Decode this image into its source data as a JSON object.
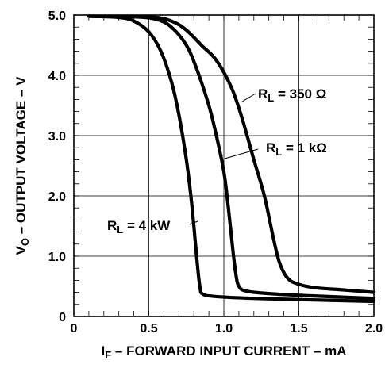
{
  "chart_data": {
    "type": "line",
    "xlabel": "I",
    "xlabel_sub": "F",
    "xlabel_rest": " – FORWARD INPUT CURRENT – mA",
    "ylabel": "V",
    "ylabel_sub": "O",
    "ylabel_rest": " – OUTPUT VOLTAGE – V",
    "xlim": [
      0,
      2.0
    ],
    "ylim": [
      0,
      5.0
    ],
    "x_ticks": [
      {
        "value": 0,
        "label": "0"
      },
      {
        "value": 0.5,
        "label": "0.5"
      },
      {
        "value": 1.0,
        "label": "1.0"
      },
      {
        "value": 1.5,
        "label": "1.5"
      },
      {
        "value": 2.0,
        "label": "2.0"
      }
    ],
    "y_ticks": [
      {
        "value": 0,
        "label": "0"
      },
      {
        "value": 1.0,
        "label": "1.0"
      },
      {
        "value": 2.0,
        "label": "2.0"
      },
      {
        "value": 3.0,
        "label": "3.0"
      },
      {
        "value": 4.0,
        "label": "4.0"
      },
      {
        "value": 5.0,
        "label": "5.0"
      }
    ],
    "grid": true,
    "series": [
      {
        "name": "RL = 4 kW",
        "label_main": "R",
        "label_sub": "L",
        "label_rest": " = 4 kW",
        "points": [
          [
            0.1,
            4.98
          ],
          [
            0.3,
            4.96
          ],
          [
            0.4,
            4.9
          ],
          [
            0.5,
            4.72
          ],
          [
            0.58,
            4.4
          ],
          [
            0.65,
            3.9
          ],
          [
            0.7,
            3.35
          ],
          [
            0.75,
            2.6
          ],
          [
            0.78,
            2.0
          ],
          [
            0.8,
            1.5
          ],
          [
            0.82,
            0.95
          ],
          [
            0.84,
            0.5
          ],
          [
            0.86,
            0.37
          ],
          [
            0.95,
            0.33
          ],
          [
            1.2,
            0.3
          ],
          [
            1.5,
            0.28
          ],
          [
            2.0,
            0.25
          ]
        ]
      },
      {
        "name": "RL = 1 kΩ",
        "label_main": "R",
        "label_sub": "L",
        "label_rest": " = 1 kΩ",
        "points": [
          [
            0.1,
            4.98
          ],
          [
            0.4,
            4.97
          ],
          [
            0.55,
            4.93
          ],
          [
            0.65,
            4.8
          ],
          [
            0.75,
            4.5
          ],
          [
            0.82,
            4.1
          ],
          [
            0.9,
            3.5
          ],
          [
            0.95,
            3.0
          ],
          [
            1.0,
            2.4
          ],
          [
            1.03,
            1.8
          ],
          [
            1.06,
            1.1
          ],
          [
            1.08,
            0.7
          ],
          [
            1.1,
            0.5
          ],
          [
            1.15,
            0.42
          ],
          [
            1.3,
            0.38
          ],
          [
            1.6,
            0.34
          ],
          [
            2.0,
            0.3
          ]
        ]
      },
      {
        "name": "RL = 350 Ω",
        "label_main": "R",
        "label_sub": "L",
        "label_rest": " = 350 Ω",
        "points": [
          [
            0.1,
            4.98
          ],
          [
            0.5,
            4.97
          ],
          [
            0.65,
            4.9
          ],
          [
            0.75,
            4.75
          ],
          [
            0.85,
            4.5
          ],
          [
            0.95,
            4.25
          ],
          [
            1.05,
            3.8
          ],
          [
            1.12,
            3.3
          ],
          [
            1.2,
            2.6
          ],
          [
            1.27,
            2.0
          ],
          [
            1.33,
            1.3
          ],
          [
            1.37,
            0.9
          ],
          [
            1.42,
            0.65
          ],
          [
            1.48,
            0.55
          ],
          [
            1.6,
            0.48
          ],
          [
            1.8,
            0.44
          ],
          [
            2.0,
            0.4
          ]
        ]
      }
    ]
  }
}
